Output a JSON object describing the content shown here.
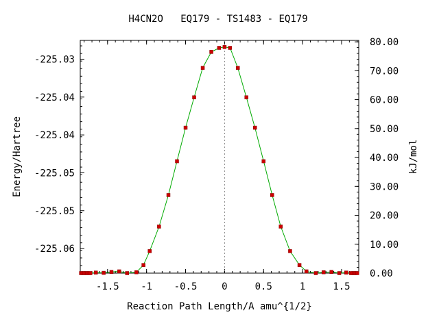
{
  "chart_data": {
    "type": "line",
    "title": "H4CN2O   EQ179 - TS1483 - EQ179",
    "xlabel": "Reaction Path Length/A amu^{1/2}",
    "ylabel": "Energy/Hartree",
    "y2label": "kJ/mol",
    "xlim": [
      -1.85,
      1.72
    ],
    "ylim_kjmol": [
      0,
      80.5
    ],
    "x_ticks": [
      "-1.5",
      "-1",
      "-0.5",
      "0",
      "0.5",
      "1",
      "1.5"
    ],
    "x_tick_values": [
      -1.5,
      -1,
      -0.5,
      0,
      0.5,
      1,
      1.5
    ],
    "y_left_ticks": [
      "-225.03",
      "-225.04",
      "-225.04",
      "-225.05",
      "-225.05",
      "-225.06"
    ],
    "y_left_tick_kjmol": [
      74.0,
      60.9,
      47.8,
      34.7,
      21.6,
      8.5
    ],
    "y_right_ticks": [
      "0.00",
      "10.00",
      "20.00",
      "30.00",
      "40.00",
      "50.00",
      "60.00",
      "70.00",
      "80.00"
    ],
    "y_right_tick_values": [
      0,
      10,
      20,
      30,
      40,
      50,
      60,
      70,
      80
    ],
    "series": [
      {
        "color": "#00aa00",
        "marker_color": "#cc0000",
        "x": [
          -1.84,
          -1.82,
          -1.8,
          -1.78,
          -1.76,
          -1.74,
          -1.72,
          -1.65,
          -1.55,
          -1.45,
          -1.35,
          -1.25,
          -1.13,
          -1.04,
          -0.96,
          -0.84,
          -0.72,
          -0.61,
          -0.5,
          -0.39,
          -0.28,
          -0.17,
          -0.07,
          0.0,
          0.07,
          0.17,
          0.28,
          0.39,
          0.5,
          0.61,
          0.72,
          0.84,
          0.96,
          1.05,
          1.17,
          1.27,
          1.37,
          1.47,
          1.56,
          1.62,
          1.64,
          1.66,
          1.68,
          1.7
        ],
        "y": [
          0.0,
          0.0,
          0.0,
          0.0,
          0.0,
          0.0,
          0.0,
          0.2,
          0.1,
          0.4,
          0.6,
          0.0,
          0.3,
          2.8,
          7.6,
          16.1,
          27.0,
          38.7,
          50.3,
          60.8,
          71.0,
          76.5,
          77.9,
          78.2,
          77.9,
          71.0,
          60.8,
          50.3,
          38.7,
          27.0,
          16.1,
          7.6,
          2.8,
          0.6,
          0.0,
          0.3,
          0.4,
          0.0,
          0.2,
          0.0,
          0.0,
          0.0,
          0.0,
          0.0
        ]
      }
    ],
    "ts_line_x": 0.0,
    "ts_line_color": "#888888",
    "grid": false,
    "legend": false
  }
}
